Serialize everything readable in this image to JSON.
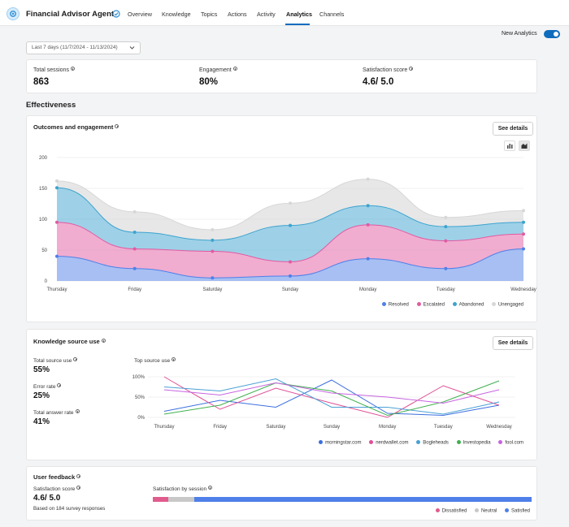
{
  "app": {
    "agent_name": "Financial Advisor Agent"
  },
  "tabs": [
    {
      "label": "Overview"
    },
    {
      "label": "Knowledge"
    },
    {
      "label": "Topics"
    },
    {
      "label": "Actions"
    },
    {
      "label": "Activity"
    },
    {
      "label": "Analytics"
    },
    {
      "label": "Channels"
    }
  ],
  "active_tab": "Analytics",
  "toolbar": {
    "new_analytics_label": "New Analytics",
    "new_analytics_on": true
  },
  "date_filter": {
    "value": "Last 7 days (11/7/2024 - 11/13/2024)"
  },
  "summary": {
    "total_sessions_label": "Total sessions",
    "total_sessions_value": "863",
    "engagement_label": "Engagement",
    "engagement_value": "80%",
    "satisfaction_label": "Satisfaction score",
    "satisfaction_value": "4.6/ 5.0"
  },
  "effectiveness": {
    "section_title": "Effectiveness"
  },
  "outcomes": {
    "title": "Outcomes and engagement",
    "see_details": "See details"
  },
  "knowledge": {
    "title": "Knowledge source use",
    "see_details": "See details",
    "total_source_use_label": "Total source use",
    "total_source_use_value": "55%",
    "error_rate_label": "Error rate",
    "error_rate_value": "25%",
    "total_answer_rate_label": "Total answer rate",
    "total_answer_rate_value": "41%",
    "top_source_use_label": "Top source use"
  },
  "feedback": {
    "title": "User feedback",
    "satisfaction_score_label": "Satisfaction score",
    "satisfaction_score_value": "4.6/ 5.0",
    "survey_note": "Based on 184 survey responses",
    "by_session_label": "Satisfaction by session"
  },
  "chart_data": [
    {
      "type": "area",
      "categories": [
        "Thursday",
        "Friday",
        "Saturday",
        "Sunday",
        "Monday",
        "Tuesday",
        "Wednesday"
      ],
      "ylim": [
        0,
        200
      ],
      "yticks": [
        0,
        50,
        100,
        150,
        200
      ],
      "stacked": true,
      "series": [
        {
          "name": "Resolved",
          "color": "#4f7fe8",
          "values": [
            40,
            20,
            5,
            8,
            36,
            20,
            52
          ]
        },
        {
          "name": "Escalated",
          "color": "#e15ba2",
          "values": [
            55,
            32,
            43,
            23,
            55,
            45,
            24
          ]
        },
        {
          "name": "Abandoned",
          "color": "#3da3cf",
          "values": [
            56,
            27,
            18,
            59,
            31,
            23,
            19
          ]
        },
        {
          "name": "Unengaged",
          "color": "#d7d7d7",
          "values": [
            11,
            33,
            17,
            36,
            43,
            15,
            19
          ]
        }
      ],
      "grid": true,
      "legend": "bottom-right"
    },
    {
      "type": "line",
      "categories": [
        "Thursday",
        "Friday",
        "Saturday",
        "Sunday",
        "Monday",
        "Tuesday",
        "Wednesday"
      ],
      "ylim": [
        0,
        100
      ],
      "yticks": [
        "0%",
        "50%",
        "100%"
      ],
      "series": [
        {
          "name": "morningstar.com",
          "color": "#3b6fe0",
          "values": [
            15,
            42,
            25,
            92,
            10,
            5,
            30
          ]
        },
        {
          "name": "nerdwallet.com",
          "color": "#e04f96",
          "values": [
            100,
            20,
            72,
            35,
            0,
            78,
            30
          ]
        },
        {
          "name": "Bogleheads",
          "color": "#4aa0d5",
          "values": [
            75,
            65,
            95,
            25,
            25,
            8,
            38
          ]
        },
        {
          "name": "Investopedia",
          "color": "#3fb04f",
          "values": [
            8,
            30,
            85,
            65,
            5,
            38,
            90
          ]
        },
        {
          "name": "fool.com",
          "color": "#c764e0",
          "values": [
            68,
            55,
            85,
            60,
            50,
            35,
            68
          ]
        }
      ],
      "grid": true,
      "legend": "bottom-right"
    },
    {
      "type": "bar",
      "title": "Satisfaction by session",
      "stacked": true,
      "series": [
        {
          "name": "Dissatisfied",
          "color": "#e15b8d",
          "values": [
            4
          ]
        },
        {
          "name": "Neutral",
          "color": "#c8c8c8",
          "values": [
            7
          ]
        },
        {
          "name": "Satisfied",
          "color": "#4f7fe8",
          "values": [
            89
          ]
        }
      ],
      "legend": "bottom-right"
    }
  ]
}
